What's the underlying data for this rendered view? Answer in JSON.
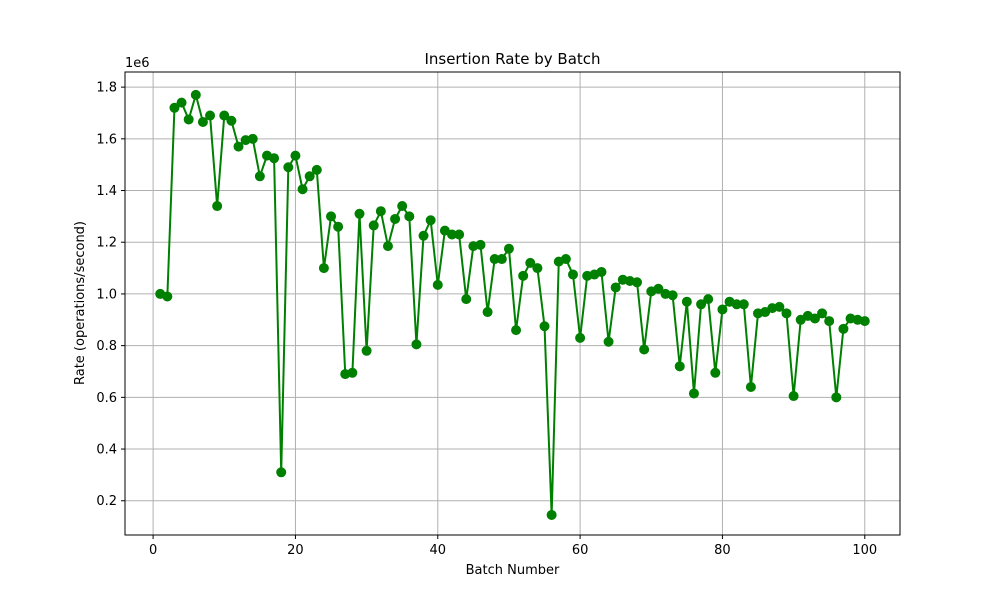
{
  "chart_data": {
    "type": "line",
    "title": "Insertion Rate by Batch",
    "xlabel": "Batch Number",
    "ylabel": "Rate (operations/second)",
    "y_offset_label": "1e6",
    "xlim": [
      -3.95,
      104.95
    ],
    "ylim": [
      0.0675,
      1.8585
    ],
    "y_scale_factor": 1000000,
    "xticks": [
      0,
      20,
      40,
      60,
      80,
      100
    ],
    "xtick_labels": [
      "0",
      "20",
      "40",
      "60",
      "80",
      "100"
    ],
    "yticks": [
      0.2,
      0.4,
      0.6,
      0.8,
      1.0,
      1.2,
      1.4,
      1.6,
      1.8
    ],
    "ytick_labels": [
      "0.2",
      "0.4",
      "0.6",
      "0.8",
      "1.0",
      "1.2",
      "1.4",
      "1.6",
      "1.8"
    ],
    "grid": true,
    "color": "#008000",
    "marker": "circle",
    "series": [
      {
        "x": [
          1,
          2,
          3,
          4,
          5,
          6,
          7,
          8,
          9,
          10,
          11,
          12,
          13,
          14,
          15,
          16,
          17,
          18,
          19,
          20,
          21,
          22,
          23,
          24,
          25,
          26,
          27,
          28,
          29,
          30,
          31,
          32,
          33,
          34,
          35,
          36,
          37,
          38,
          39,
          40,
          41,
          42,
          43,
          44,
          45,
          46,
          47,
          48,
          49,
          50,
          51,
          52,
          53,
          54,
          55,
          56,
          57,
          58,
          59,
          60,
          61,
          62,
          63,
          64,
          65,
          66,
          67,
          68,
          69,
          70,
          71,
          72,
          73,
          74,
          75,
          76,
          77,
          78,
          79,
          80,
          81,
          82,
          83,
          84,
          85,
          86,
          87,
          88,
          89,
          90,
          91,
          92,
          93,
          94,
          95,
          96,
          97,
          98,
          99,
          100
        ],
        "y": [
          1.0,
          0.99,
          1.72,
          1.74,
          1.675,
          1.77,
          1.665,
          1.69,
          1.34,
          1.69,
          1.67,
          1.57,
          1.595,
          1.6,
          1.455,
          1.535,
          1.525,
          0.31,
          1.49,
          1.535,
          1.405,
          1.455,
          1.48,
          1.1,
          1.3,
          1.26,
          0.69,
          0.695,
          1.31,
          0.78,
          1.265,
          1.32,
          1.185,
          1.29,
          1.34,
          1.3,
          0.805,
          1.225,
          1.285,
          1.035,
          1.245,
          1.23,
          1.23,
          0.98,
          1.185,
          1.19,
          0.93,
          1.135,
          1.135,
          1.175,
          0.86,
          1.07,
          1.12,
          1.1,
          0.875,
          0.145,
          1.125,
          1.135,
          1.075,
          0.83,
          1.07,
          1.075,
          1.085,
          0.815,
          1.025,
          1.055,
          1.05,
          1.045,
          0.785,
          1.01,
          1.02,
          1.0,
          0.995,
          0.72,
          0.97,
          0.615,
          0.96,
          0.98,
          0.695,
          0.94,
          0.97,
          0.96,
          0.96,
          0.64,
          0.925,
          0.93,
          0.945,
          0.95,
          0.925,
          0.605,
          0.9,
          0.915,
          0.905,
          0.925,
          0.895,
          0.6,
          0.865,
          0.905,
          0.9,
          0.895
        ]
      }
    ]
  }
}
